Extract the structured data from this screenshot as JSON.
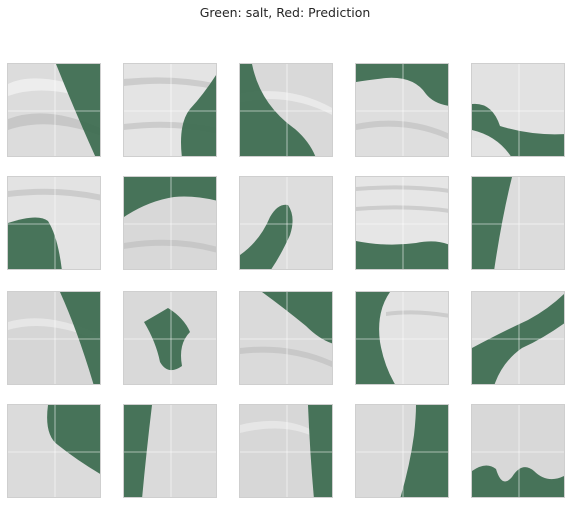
{
  "figure": {
    "title": "Green: salt, Red: Prediction"
  },
  "colors": {
    "salt": "#3f6e52",
    "seismic_light": "#e6e6e6",
    "seismic_dark": "#a9a9a9",
    "gridline": "#ffffff",
    "tile_border": "#cfcfcf"
  },
  "panels": {
    "rows": 4,
    "cols": 5,
    "count": 20
  }
}
